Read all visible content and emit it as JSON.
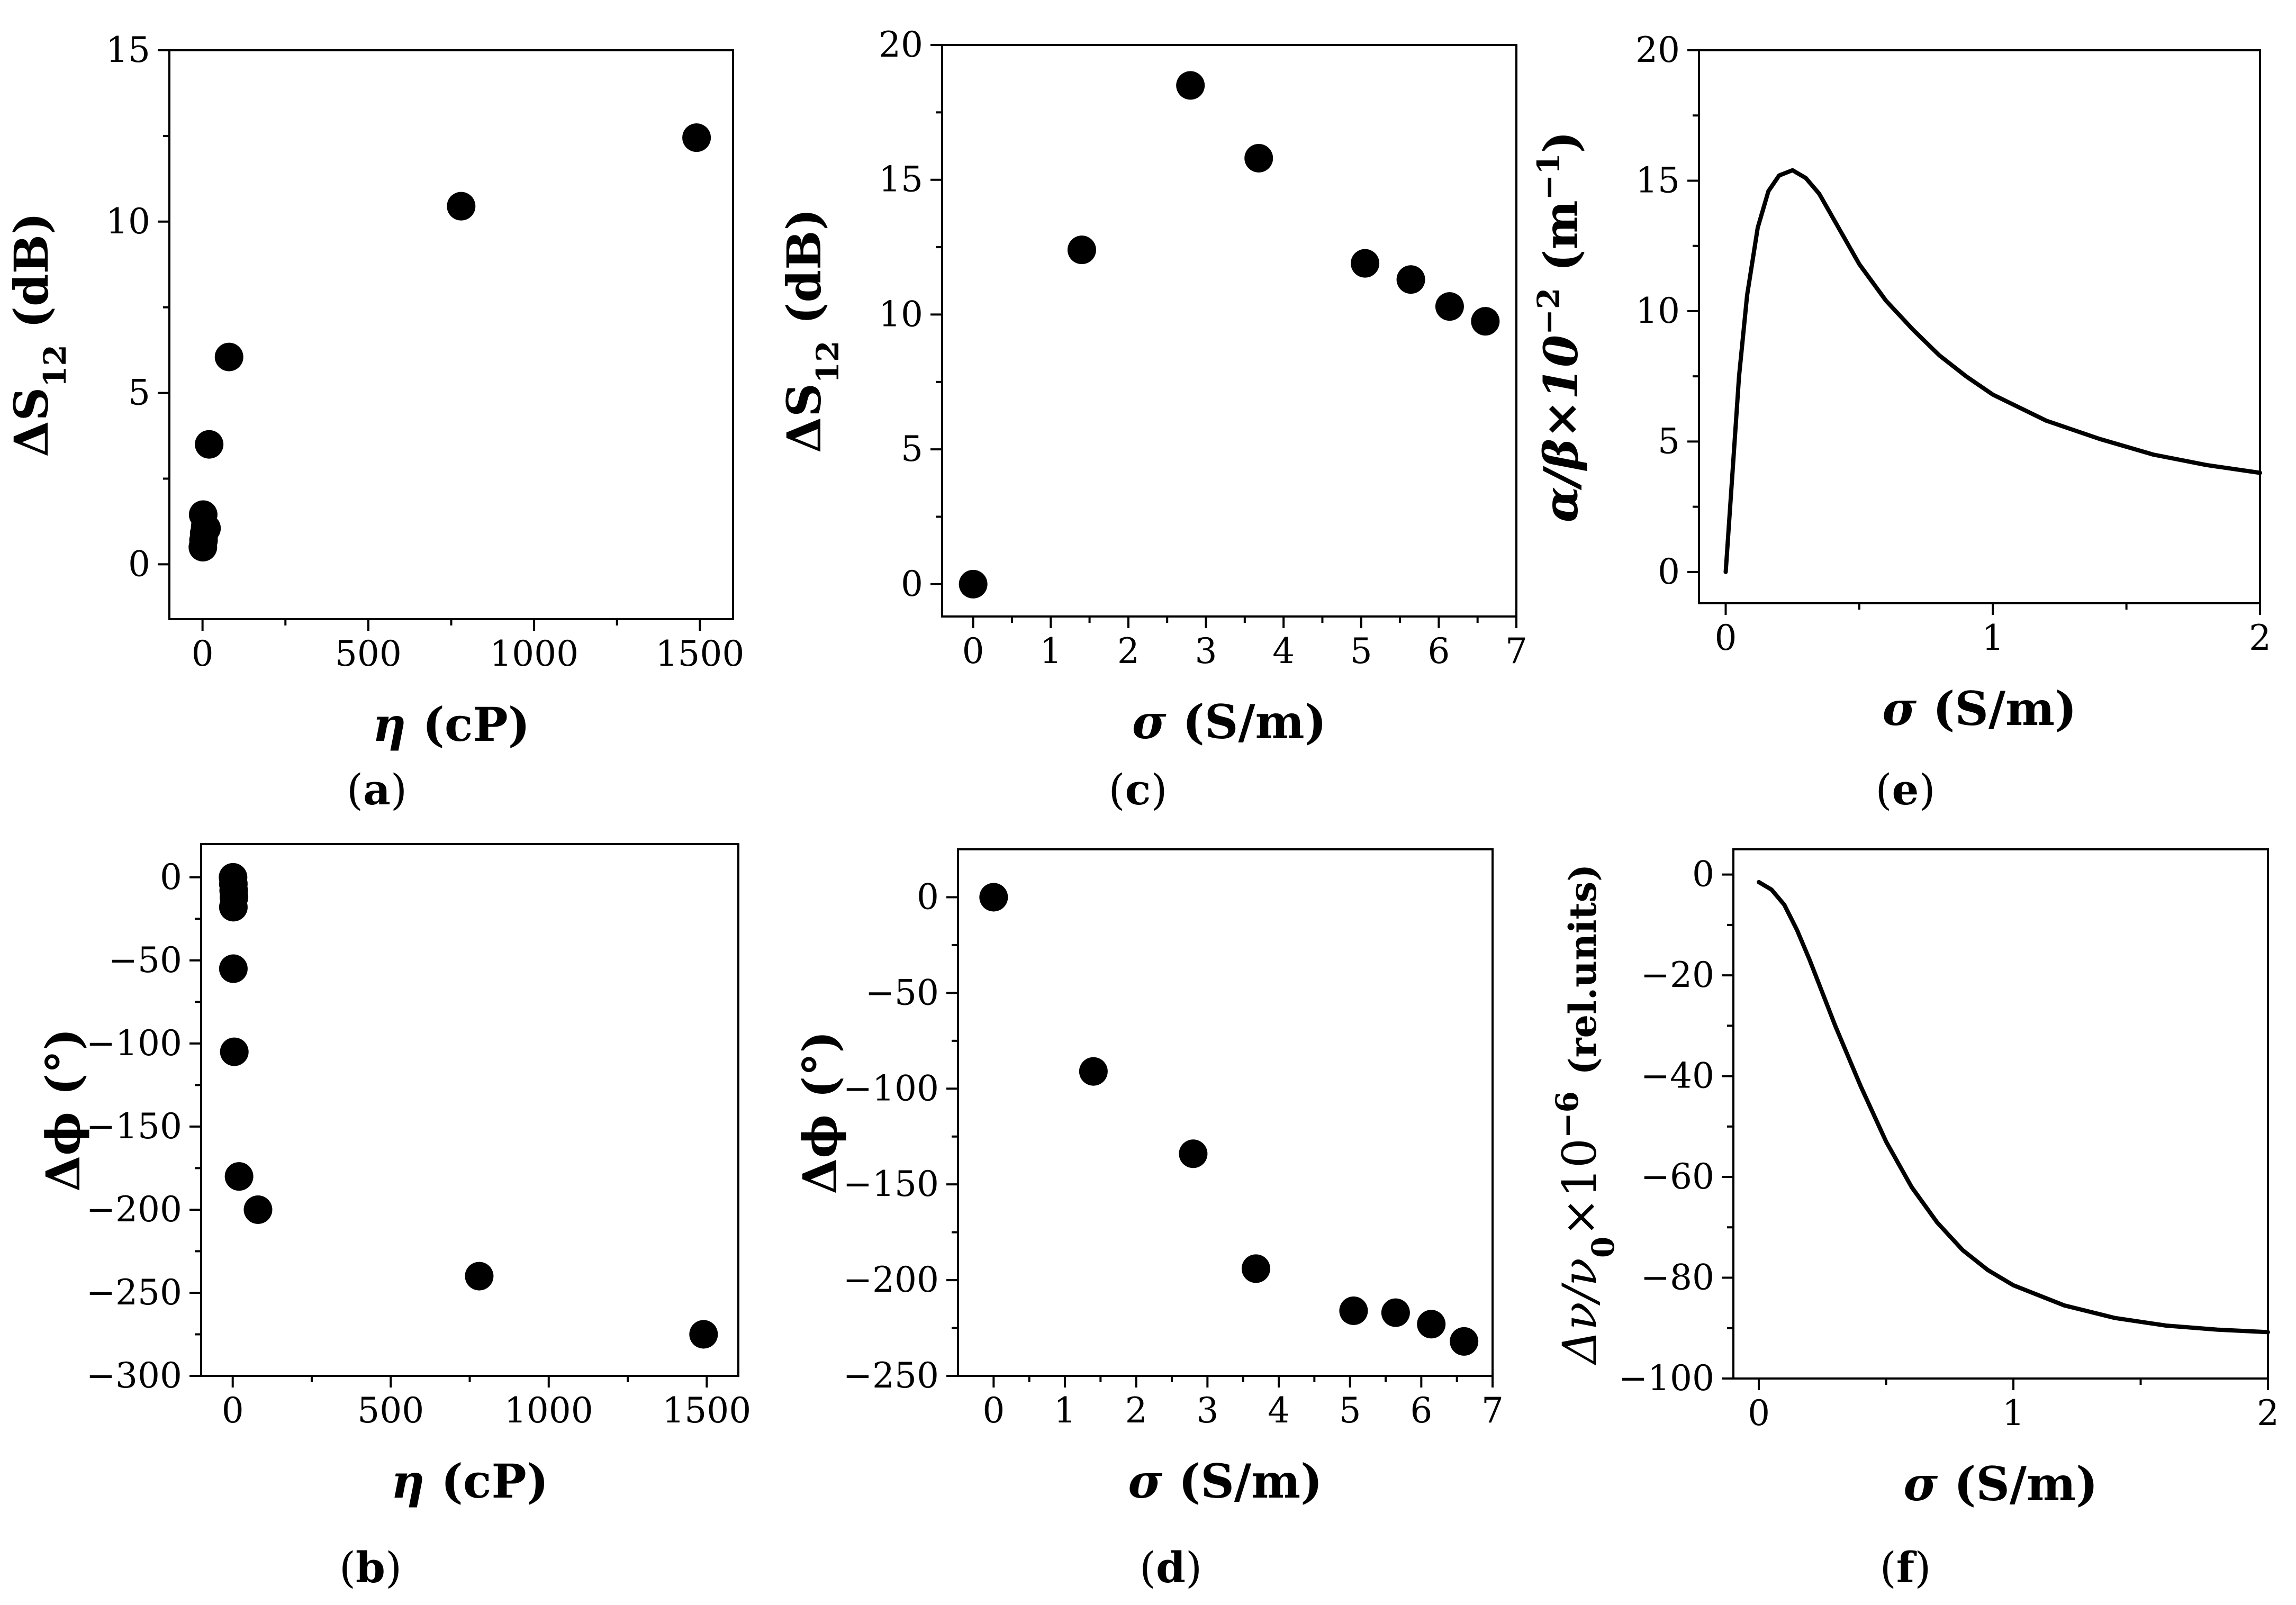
{
  "chart_data": [
    {
      "id": "a",
      "type": "scatter",
      "caption": "a",
      "xlabel_symbol": "η",
      "xlabel_unit": "(cP)",
      "ylabel_main": "ΔS",
      "ylabel_sub": "12",
      "ylabel_unit": "(dB)",
      "xlim": [
        -100,
        1600
      ],
      "ylim": [
        -1.6,
        15
      ],
      "xticks": [
        0,
        500,
        1000,
        1500
      ],
      "yticks": [
        0,
        5,
        10,
        15
      ],
      "xtick_labels": [
        "0",
        "500",
        "1000",
        "1500"
      ],
      "ytick_labels": [
        "0",
        "5",
        "10",
        "15"
      ],
      "points": [
        [
          1,
          0.5
        ],
        [
          3,
          0.7
        ],
        [
          5,
          0.9
        ],
        [
          8,
          1.1
        ],
        [
          2,
          1.45
        ],
        [
          12,
          1.05
        ],
        [
          20,
          3.5
        ],
        [
          80,
          6.05
        ],
        [
          780,
          10.45
        ],
        [
          1490,
          12.45
        ]
      ]
    },
    {
      "id": "b",
      "type": "scatter",
      "caption": "b",
      "xlabel_symbol": "η",
      "xlabel_unit": "(cP)",
      "ylabel_main": "Δϕ",
      "ylabel_unit": "(°)",
      "xlim": [
        -100,
        1600
      ],
      "ylim": [
        -300,
        20
      ],
      "xticks": [
        0,
        500,
        1000,
        1500
      ],
      "yticks": [
        0,
        -50,
        -100,
        -150,
        -200,
        -250,
        -300
      ],
      "xtick_labels": [
        "0",
        "500",
        "1000",
        "1500"
      ],
      "ytick_labels": [
        "0",
        "−50",
        "−100",
        "−150",
        "−200",
        "−250",
        "−300"
      ],
      "points": [
        [
          1,
          0
        ],
        [
          2,
          -4
        ],
        [
          3,
          -8
        ],
        [
          4,
          -12
        ],
        [
          2,
          -18
        ],
        [
          2,
          -55
        ],
        [
          5,
          -105
        ],
        [
          20,
          -180
        ],
        [
          80,
          -200
        ],
        [
          780,
          -240
        ],
        [
          1490,
          -275
        ]
      ]
    },
    {
      "id": "c",
      "type": "scatter",
      "caption": "c",
      "xlabel_symbol": "σ",
      "xlabel_unit": "(S/m)",
      "ylabel_main": "ΔS",
      "ylabel_sub": "12",
      "ylabel_unit": "(dB)",
      "xlim": [
        -0.4,
        7
      ],
      "ylim": [
        -1.2,
        20
      ],
      "xticks": [
        0,
        1,
        2,
        3,
        4,
        5,
        6,
        7
      ],
      "yticks": [
        0,
        5,
        10,
        15,
        20
      ],
      "xtick_labels": [
        "0",
        "1",
        "2",
        "3",
        "4",
        "5",
        "6",
        "7"
      ],
      "ytick_labels": [
        "0",
        "5",
        "10",
        "15",
        "20"
      ],
      "points": [
        [
          0,
          0
        ],
        [
          1.4,
          12.4
        ],
        [
          2.8,
          18.5
        ],
        [
          3.68,
          15.8
        ],
        [
          5.05,
          11.9
        ],
        [
          5.64,
          11.3
        ],
        [
          6.14,
          10.3
        ],
        [
          6.6,
          9.75
        ]
      ]
    },
    {
      "id": "d",
      "type": "scatter",
      "caption": "d",
      "xlabel_symbol": "σ",
      "xlabel_unit": "(S/m)",
      "ylabel_main": "Δϕ",
      "ylabel_unit": "(°)",
      "xlim": [
        -0.5,
        7
      ],
      "ylim": [
        -250,
        25
      ],
      "xticks": [
        0,
        1,
        2,
        3,
        4,
        5,
        6,
        7
      ],
      "yticks": [
        0,
        -50,
        -100,
        -150,
        -200,
        -250
      ],
      "xtick_labels": [
        "0",
        "1",
        "2",
        "3",
        "4",
        "5",
        "6",
        "7"
      ],
      "ytick_labels": [
        "0",
        "−50",
        "−100",
        "−150",
        "−200",
        "−250"
      ],
      "points": [
        [
          0,
          0
        ],
        [
          1.4,
          -91
        ],
        [
          2.8,
          -134
        ],
        [
          3.68,
          -194
        ],
        [
          5.05,
          -216
        ],
        [
          5.64,
          -217
        ],
        [
          6.14,
          -223
        ],
        [
          6.6,
          -232
        ]
      ]
    },
    {
      "id": "e",
      "type": "line",
      "caption": "e",
      "xlabel_symbol": "σ",
      "xlabel_unit": "(S/m)",
      "ylabel_main": "α/β×10",
      "ylabel_sup": "−2",
      "ylabel_unit": "(m",
      "ylabel_unit_sup": "−1",
      "ylabel_close": ")",
      "xlim": [
        -0.1,
        2
      ],
      "ylim": [
        -1.2,
        20
      ],
      "xticks": [
        0,
        1,
        2
      ],
      "yticks": [
        0,
        5,
        10,
        15,
        20
      ],
      "xtick_labels": [
        "0",
        "1",
        "2"
      ],
      "ytick_labels": [
        "0",
        "5",
        "10",
        "15",
        "20"
      ],
      "series": [
        {
          "name": "α/β",
          "x": [
            0,
            0.02,
            0.05,
            0.08,
            0.12,
            0.16,
            0.2,
            0.25,
            0.3,
            0.35,
            0.4,
            0.5,
            0.6,
            0.7,
            0.8,
            0.9,
            1.0,
            1.2,
            1.4,
            1.6,
            1.8,
            2.0
          ],
          "y": [
            0,
            3.0,
            7.5,
            10.6,
            13.2,
            14.6,
            15.2,
            15.4,
            15.1,
            14.5,
            13.6,
            11.8,
            10.4,
            9.3,
            8.3,
            7.5,
            6.8,
            5.8,
            5.1,
            4.5,
            4.1,
            3.8
          ]
        }
      ]
    },
    {
      "id": "f",
      "type": "line",
      "caption": "f",
      "xlabel_symbol": "σ",
      "xlabel_unit": "(S/m)",
      "ylabel_main": "Δν/ν",
      "ylabel_sub": "0",
      "ylabel_mid": "×10",
      "ylabel_sup": "−6",
      "ylabel_unit": "(rel.units)",
      "xlim": [
        -0.1,
        2
      ],
      "ylim": [
        -100,
        5
      ],
      "xticks": [
        0,
        1,
        2
      ],
      "yticks": [
        0,
        -20,
        -40,
        -60,
        -80,
        -100
      ],
      "xtick_labels": [
        "0",
        "1",
        "2"
      ],
      "ytick_labels": [
        "0",
        "−20",
        "−40",
        "−60",
        "−80",
        "−100"
      ],
      "series": [
        {
          "name": "Δν/ν0",
          "x": [
            0,
            0.05,
            0.1,
            0.15,
            0.2,
            0.3,
            0.4,
            0.5,
            0.6,
            0.7,
            0.8,
            0.9,
            1.0,
            1.2,
            1.4,
            1.6,
            1.8,
            2.0
          ],
          "y": [
            -1.5,
            -3,
            -6,
            -11,
            -17,
            -30,
            -42,
            -53,
            -62,
            -69,
            -74.5,
            -78.5,
            -81.5,
            -85.5,
            -88,
            -89.5,
            -90.3,
            -90.8
          ]
        }
      ]
    }
  ]
}
